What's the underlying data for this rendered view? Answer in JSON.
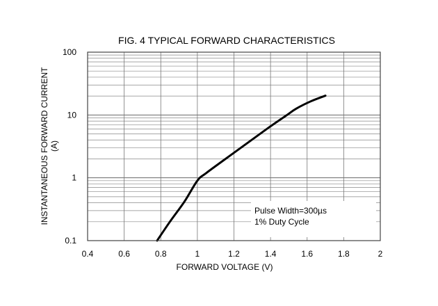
{
  "chart_data": {
    "type": "line",
    "title": "FIG. 4 TYPICAL FORWARD CHARACTERISTICS",
    "xlabel": "FORWARD VOLTAGE (V)",
    "ylabel": "INSTANTANEOUS FORWARD CURRENT",
    "ylabel_unit": "(A)",
    "xlim": [
      0.4,
      2.0
    ],
    "ylim": [
      0.1,
      100
    ],
    "yscale": "log",
    "grid": true,
    "x_ticks": [
      "0.4",
      "0.6",
      "0.8",
      "1",
      "1.2",
      "1.4",
      "1.6",
      "1.8",
      "2"
    ],
    "x_tick_values": [
      0.4,
      0.6,
      0.8,
      1.0,
      1.2,
      1.4,
      1.6,
      1.8,
      2.0
    ],
    "y_ticks": [
      "0.1",
      "1",
      "10",
      "100"
    ],
    "y_tick_values": [
      0.1,
      1,
      10,
      100
    ],
    "annotation": [
      "Pulse Width=300µs",
      "1% Duty Cycle"
    ],
    "series": [
      {
        "color": "#000000",
        "x": [
          0.78,
          0.85,
          0.93,
          1.0,
          1.05,
          1.2,
          1.39,
          1.49,
          1.54,
          1.62,
          1.7
        ],
        "y": [
          0.1,
          0.2,
          0.42,
          0.9,
          1.2,
          2.5,
          6.3,
          10,
          12.6,
          16.5,
          20.3
        ]
      }
    ]
  }
}
